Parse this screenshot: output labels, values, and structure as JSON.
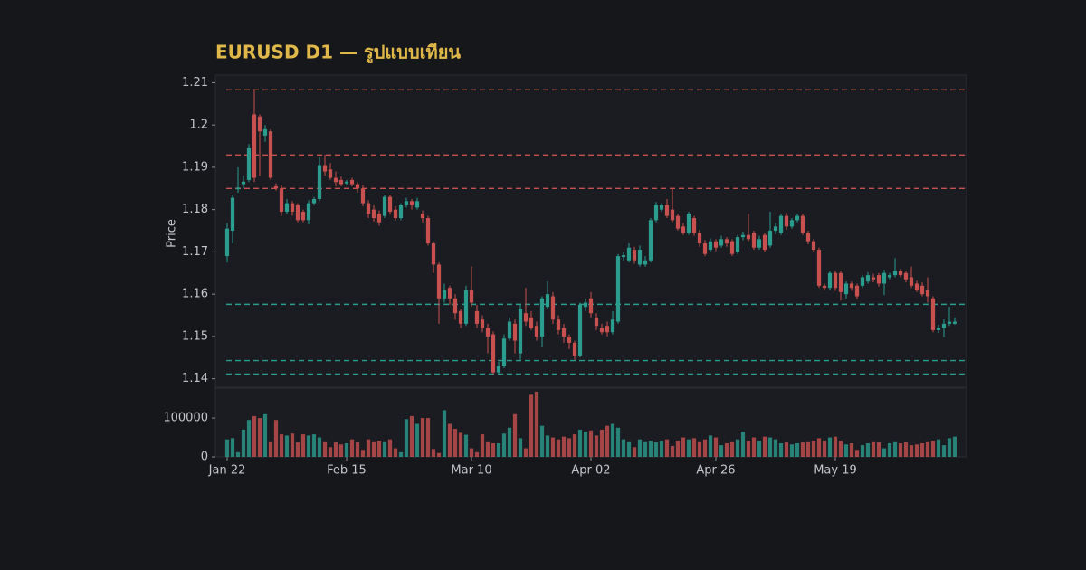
{
  "chart_data": {
    "type": "candlestick",
    "title": "EURUSD D1 — รูปแบบเทียน",
    "y_label": "Price",
    "up_color": "#2a9d8f",
    "down_color": "#c8504f",
    "categories": [
      "Jan 22",
      null,
      null,
      null,
      null,
      null,
      null,
      null,
      null,
      null,
      null,
      null,
      null,
      null,
      null,
      null,
      null,
      null,
      null,
      null,
      null,
      null,
      "Feb 15",
      null,
      null,
      null,
      null,
      null,
      null,
      null,
      null,
      null,
      null,
      null,
      null,
      null,
      null,
      null,
      null,
      null,
      null,
      null,
      null,
      null,
      null,
      "Mar 10",
      null,
      null,
      null,
      null,
      null,
      null,
      null,
      null,
      null,
      null,
      null,
      null,
      null,
      null,
      null,
      null,
      null,
      null,
      null,
      null,
      null,
      "Apr 02",
      null,
      null,
      null,
      null,
      null,
      null,
      null,
      null,
      null,
      null,
      null,
      null,
      null,
      null,
      null,
      null,
      null,
      null,
      null,
      null,
      null,
      null,
      "Apr 26",
      null,
      null,
      null,
      null,
      null,
      null,
      null,
      null,
      null,
      null,
      null,
      null,
      null,
      null,
      null,
      null,
      null,
      null,
      null,
      null,
      null,
      "May 19",
      null,
      null,
      null,
      null,
      null,
      null,
      null,
      null,
      null,
      null,
      null,
      null,
      null,
      null,
      null,
      null,
      null,
      null,
      null,
      null,
      null,
      null
    ],
    "open": [
      1.169,
      1.175,
      1.1848,
      1.186,
      1.187,
      1.2025,
      1.202,
      1.1975,
      1.1985,
      1.1855,
      1.185,
      1.1795,
      1.1815,
      1.181,
      1.1795,
      1.1775,
      1.1815,
      1.1825,
      1.1905,
      1.1895,
      1.1875,
      1.187,
      1.1862,
      1.187,
      1.186,
      1.185,
      1.1815,
      1.18,
      1.179,
      1.1785,
      1.183,
      1.18,
      1.178,
      1.181,
      1.182,
      1.1805,
      1.179,
      1.178,
      1.172,
      1.167,
      1.159,
      1.1615,
      1.159,
      1.156,
      1.153,
      1.161,
      1.156,
      1.154,
      1.152,
      1.1505,
      1.1415,
      1.143,
      1.1495,
      1.153,
      1.146,
      1.1555,
      1.1545,
      1.1525,
      1.15,
      1.157,
      1.1595,
      1.154,
      1.152,
      1.15,
      1.1485,
      1.1455,
      1.157,
      1.159,
      1.1545,
      1.152,
      1.1525,
      1.151,
      1.1535,
      1.1688,
      1.168,
      1.1705,
      1.167,
      1.167,
      1.168,
      1.1775,
      1.18,
      1.181,
      1.18,
      1.1785,
      1.176,
      1.1745,
      1.178,
      1.1745,
      1.172,
      1.1705,
      1.1725,
      1.1715,
      1.173,
      1.1725,
      1.17,
      1.1735,
      1.174,
      1.1745,
      1.171,
      1.174,
      1.1715,
      1.175,
      1.1745,
      1.1785,
      1.176,
      1.1775,
      1.1785,
      1.1745,
      1.1725,
      1.1705,
      1.162,
      1.1615,
      1.165,
      1.165,
      1.16,
      1.1625,
      1.162,
      1.162,
      1.163,
      1.164,
      1.1645,
      1.1625,
      1.164,
      1.1645,
      1.1655,
      1.165,
      1.164,
      1.1625,
      1.162,
      1.161,
      1.159,
      1.1515,
      1.152,
      1.153,
      1.153
    ],
    "high": [
      1.1768,
      1.1835,
      1.19,
      1.188,
      1.1955,
      1.2083,
      1.2025,
      1.2,
      1.199,
      1.1862,
      1.1858,
      1.1825,
      1.182,
      1.1815,
      1.18,
      1.1822,
      1.183,
      1.1925,
      1.193,
      1.191,
      1.189,
      1.1878,
      1.187,
      1.1875,
      1.1865,
      1.1858,
      1.1822,
      1.181,
      1.1798,
      1.1835,
      1.1835,
      1.1808,
      1.1815,
      1.1828,
      1.1825,
      1.1828,
      1.1798,
      1.1785,
      1.1725,
      1.1675,
      1.1625,
      1.162,
      1.16,
      1.1565,
      1.162,
      1.1665,
      1.1575,
      1.155,
      1.153,
      1.1512,
      1.144,
      1.1505,
      1.1545,
      1.154,
      1.1575,
      1.1615,
      1.156,
      1.1535,
      1.1595,
      1.163,
      1.1605,
      1.155,
      1.153,
      1.1505,
      1.149,
      1.158,
      1.159,
      1.1605,
      1.1555,
      1.153,
      1.1535,
      1.156,
      1.1695,
      1.17,
      1.172,
      1.1712,
      1.1715,
      1.169,
      1.178,
      1.1818,
      1.1815,
      1.1825,
      1.185,
      1.179,
      1.1768,
      1.1795,
      1.1785,
      1.1752,
      1.1728,
      1.1732,
      1.173,
      1.1738,
      1.1735,
      1.173,
      1.174,
      1.1748,
      1.179,
      1.175,
      1.1738,
      1.1745,
      1.1795,
      1.1768,
      1.179,
      1.1792,
      1.178,
      1.179,
      1.179,
      1.175,
      1.173,
      1.171,
      1.1625,
      1.1655,
      1.1655,
      1.1655,
      1.163,
      1.163,
      1.1625,
      1.1645,
      1.1652,
      1.1648,
      1.165,
      1.1658,
      1.165,
      1.1685,
      1.166,
      1.1655,
      1.1665,
      1.1632,
      1.1628,
      1.164,
      1.1595,
      1.1528,
      1.154,
      1.157,
      1.1545
    ],
    "low": [
      1.1675,
      1.172,
      1.184,
      1.185,
      1.1865,
      1.1865,
      1.188,
      1.196,
      1.187,
      1.1845,
      1.1785,
      1.179,
      1.1785,
      1.177,
      1.177,
      1.1765,
      1.181,
      1.182,
      1.188,
      1.187,
      1.1855,
      1.1855,
      1.1858,
      1.1855,
      1.184,
      1.1808,
      1.178,
      1.1772,
      1.1762,
      1.178,
      1.1788,
      1.1775,
      1.1775,
      1.1805,
      1.18,
      1.18,
      1.177,
      1.1715,
      1.165,
      1.153,
      1.158,
      1.1575,
      1.154,
      1.152,
      1.1525,
      1.157,
      1.152,
      1.151,
      1.146,
      1.1411,
      1.1411,
      1.1425,
      1.149,
      1.146,
      1.1445,
      1.1525,
      1.1515,
      1.149,
      1.1475,
      1.1565,
      1.153,
      1.1505,
      1.1485,
      1.147,
      1.1445,
      1.145,
      1.156,
      1.1545,
      1.1515,
      1.1505,
      1.15,
      1.1505,
      1.153,
      1.168,
      1.1675,
      1.1672,
      1.1665,
      1.1665,
      1.1675,
      1.177,
      1.1795,
      1.178,
      1.177,
      1.175,
      1.174,
      1.174,
      1.1738,
      1.1712,
      1.169,
      1.17,
      1.1702,
      1.171,
      1.1712,
      1.169,
      1.1695,
      1.1728,
      1.1725,
      1.1705,
      1.1705,
      1.17,
      1.171,
      1.1742,
      1.174,
      1.1752,
      1.1755,
      1.177,
      1.174,
      1.1718,
      1.17,
      1.1615,
      1.161,
      1.161,
      1.1608,
      1.1585,
      1.159,
      1.1608,
      1.1588,
      1.1615,
      1.1625,
      1.1628,
      1.1618,
      1.1598,
      1.1635,
      1.164,
      1.164,
      1.1628,
      1.1615,
      1.1605,
      1.1595,
      1.158,
      1.151,
      1.1508,
      1.1498,
      1.1525,
      1.1528
    ],
    "close": [
      1.1755,
      1.1828,
      1.1852,
      1.1866,
      1.1945,
      1.1875,
      1.1985,
      1.199,
      1.1875,
      1.185,
      1.1795,
      1.1815,
      1.1795,
      1.1775,
      1.1775,
      1.1815,
      1.1825,
      1.1905,
      1.189,
      1.1875,
      1.1865,
      1.186,
      1.1866,
      1.186,
      1.185,
      1.1815,
      1.179,
      1.178,
      1.177,
      1.183,
      1.1795,
      1.178,
      1.181,
      1.182,
      1.181,
      1.182,
      1.178,
      1.172,
      1.167,
      1.159,
      1.161,
      1.159,
      1.1555,
      1.153,
      1.161,
      1.158,
      1.153,
      1.152,
      1.15,
      1.1415,
      1.143,
      1.1495,
      1.1535,
      1.149,
      1.1565,
      1.1535,
      1.152,
      1.15,
      1.159,
      1.16,
      1.154,
      1.1515,
      1.15,
      1.1485,
      1.1455,
      1.1575,
      1.158,
      1.1555,
      1.1525,
      1.151,
      1.151,
      1.154,
      1.169,
      1.1692,
      1.171,
      1.168,
      1.1705,
      1.168,
      1.1775,
      1.181,
      1.181,
      1.1785,
      1.1775,
      1.1755,
      1.1745,
      1.179,
      1.1745,
      1.172,
      1.1695,
      1.1725,
      1.171,
      1.173,
      1.172,
      1.1695,
      1.1735,
      1.174,
      1.173,
      1.171,
      1.173,
      1.1705,
      1.175,
      1.176,
      1.1785,
      1.176,
      1.1775,
      1.1785,
      1.1745,
      1.1725,
      1.1705,
      1.162,
      1.1615,
      1.165,
      1.1615,
      1.1605,
      1.1625,
      1.1615,
      1.1595,
      1.164,
      1.1645,
      1.1635,
      1.1625,
      1.165,
      1.1645,
      1.1655,
      1.1645,
      1.1635,
      1.162,
      1.161,
      1.16,
      1.1595,
      1.1515,
      1.152,
      1.153,
      1.1535,
      1.1535
    ],
    "volume": [
      45000,
      48000,
      12000,
      70000,
      95000,
      105000,
      100000,
      110000,
      40000,
      95000,
      58000,
      55000,
      60000,
      38000,
      58000,
      55000,
      58000,
      50000,
      40000,
      25000,
      38000,
      32000,
      35000,
      45000,
      38000,
      18000,
      45000,
      40000,
      42000,
      40000,
      45000,
      22000,
      12000,
      97000,
      105000,
      85000,
      100000,
      100000,
      20000,
      10000,
      120000,
      85000,
      72000,
      62000,
      57000,
      22000,
      12000,
      58000,
      40000,
      35000,
      35000,
      60000,
      75000,
      110000,
      48000,
      22000,
      160000,
      168000,
      80000,
      55000,
      50000,
      45000,
      52000,
      48000,
      58000,
      70000,
      65000,
      68000,
      55000,
      70000,
      80000,
      85000,
      75000,
      45000,
      40000,
      25000,
      45000,
      40000,
      42000,
      38000,
      42000,
      45000,
      28000,
      42000,
      50000,
      45000,
      48000,
      40000,
      45000,
      55000,
      50000,
      30000,
      35000,
      40000,
      45000,
      65000,
      42000,
      50000,
      42000,
      52000,
      50000,
      45000,
      35000,
      38000,
      32000,
      35000,
      38000,
      40000,
      42000,
      48000,
      42000,
      50000,
      52000,
      42000,
      32000,
      35000,
      18000,
      30000,
      35000,
      40000,
      38000,
      22000,
      35000,
      40000,
      35000,
      38000,
      30000,
      32000,
      35000,
      40000,
      42000,
      45000,
      30000,
      48000,
      52000
    ],
    "resistance_levels": [
      1.2083,
      1.1929,
      1.185
    ],
    "support_levels": [
      1.1576,
      1.1443,
      1.1411
    ],
    "ylim": [
      1.138,
      1.2118
    ],
    "yticks": [
      1.14,
      1.15,
      1.16,
      1.17,
      1.18,
      1.19,
      1.2,
      1.21
    ],
    "volume_ylim": [
      0,
      177000
    ],
    "volume_yticks": [
      0,
      100000
    ]
  }
}
